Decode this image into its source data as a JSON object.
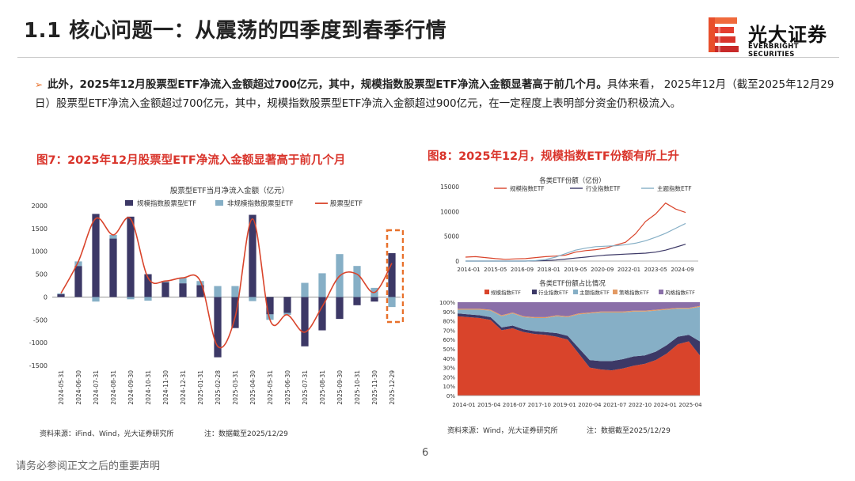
{
  "header": {
    "title": "1.1 核心问题一：从震荡的四季度到春季行情",
    "logo_cn": "光大证券",
    "logo_en": "EVERBRIGHT SECURITIES"
  },
  "bullet": {
    "lead": "此外，2025年12月股票型ETF净流入金额超过700亿元，其中，规模指数股票型ETF净流入金额显著高于前几个月。",
    "body": "具体来看， 2025年12月（截至2025年12月29日）股票型ETF净流入金额超过700亿元，其中，规模指数股票型ETF净流入金额超过900亿元，在一定程度上表明部分资金仍积极流入。"
  },
  "fig7": {
    "heading": "图7：2025年12月股票型ETF净流入金额显著高于前几个月",
    "source": "资料来源：iFind、Wind，光大证券研究所",
    "note": "注：数据截至2025/12/29"
  },
  "fig8": {
    "heading": "图8：2025年12月，规模指数ETF份额有所上升",
    "source": "资料来源：Wind，光大证券研究所",
    "note": "注：数据截至2025/12/29"
  },
  "footer": {
    "disclaimer": "请务必参阅正文之后的重要声明",
    "page": "6"
  },
  "chart_data": [
    {
      "type": "bar",
      "title": "股票型ETF当月净流入金额（亿元）",
      "categories": [
        "2024-05-31",
        "2024-06-30",
        "2024-07-31",
        "2024-08-31",
        "2024-09-30",
        "2024-10-31",
        "2024-11-30",
        "2024-12-31",
        "2025-01-31",
        "2025-02-28",
        "2025-03-31",
        "2025-04-30",
        "2025-05-31",
        "2025-06-30",
        "2025-07-31",
        "2025-08-31",
        "2025-09-30",
        "2025-10-31",
        "2025-11-30",
        "2025-12-29"
      ],
      "ylim": [
        -1500,
        2000
      ],
      "yticks": [
        "2000",
        "1500",
        "1000",
        "500",
        "0",
        "-500",
        "-1000",
        "-1500"
      ],
      "series": [
        {
          "name": "规模指数股票型ETF",
          "kind": "bar-stack",
          "color": "#3c3866",
          "values": [
            60,
            680,
            1820,
            1280,
            1760,
            500,
            320,
            300,
            260,
            -1320,
            -680,
            1800,
            -380,
            -350,
            -1080,
            -730,
            -480,
            -180,
            -100,
            960
          ]
        },
        {
          "name": "非规模指数股票型ETF",
          "kind": "bar-stack",
          "color": "#86afc6",
          "values": [
            20,
            100,
            -100,
            80,
            -50,
            -80,
            30,
            120,
            90,
            240,
            240,
            -90,
            -120,
            -40,
            310,
            520,
            940,
            680,
            200,
            -220
          ]
        },
        {
          "name": "股票型ETF",
          "kind": "line",
          "color": "#d9442b",
          "values": [
            80,
            780,
            1720,
            1360,
            1710,
            420,
            350,
            420,
            350,
            -1080,
            -440,
            1710,
            -500,
            -390,
            -770,
            -210,
            460,
            500,
            100,
            740
          ]
        }
      ]
    },
    {
      "type": "line",
      "title": "各类ETF份额（亿份）",
      "x_ticks": [
        "2014-01",
        "2015-05",
        "2016-09",
        "2018-01",
        "2019-05",
        "2020-09",
        "2022-01",
        "2023-05",
        "2024-09"
      ],
      "ylim": [
        0,
        15000
      ],
      "yticks": [
        "15000",
        "10000",
        "5000",
        "0"
      ],
      "series": [
        {
          "name": "规模指数ETF",
          "color": "#d9442b",
          "values": [
            800,
            900,
            700,
            500,
            350,
            450,
            500,
            700,
            900,
            1000,
            1200,
            1800,
            2100,
            2300,
            2600,
            3200,
            3800,
            5500,
            8000,
            9500,
            11700,
            10500,
            9800
          ]
        },
        {
          "name": "行业指数ETF",
          "color": "#3c3866",
          "values": [
            0,
            0,
            0,
            0,
            0,
            0,
            0,
            50,
            100,
            200,
            400,
            600,
            800,
            1000,
            1200,
            1300,
            1400,
            1500,
            1600,
            1800,
            2200,
            2800,
            3400
          ]
        },
        {
          "name": "主题指数ETF",
          "color": "#86afc6",
          "values": [
            0,
            0,
            0,
            0,
            0,
            0,
            0,
            100,
            300,
            800,
            1500,
            2200,
            2600,
            2900,
            3000,
            3100,
            3300,
            3600,
            4100,
            4800,
            5600,
            6600,
            7600
          ]
        }
      ]
    },
    {
      "type": "area",
      "title": "各类ETF份额占比情况",
      "x_ticks": [
        "2014-01",
        "2015-04",
        "2016-07",
        "2017-10",
        "2019-01",
        "2020-04",
        "2021-07",
        "2022-10",
        "2024-01",
        "2025-04"
      ],
      "ylim": [
        0,
        100
      ],
      "yticks": [
        "100%",
        "90%",
        "80%",
        "70%",
        "60%",
        "50%",
        "40%",
        "30%",
        "20%",
        "10%",
        "0%"
      ],
      "series": [
        {
          "name": "规模指数ETF",
          "color": "#d9442b",
          "values": [
            85,
            84,
            83,
            81,
            70,
            72,
            68,
            66,
            65,
            63,
            60,
            45,
            30,
            28,
            27,
            29,
            32,
            34,
            38,
            45,
            55,
            58,
            43
          ]
        },
        {
          "name": "行业指数ETF",
          "color": "#3c3866",
          "values": [
            3,
            3,
            3,
            3,
            3,
            3,
            3,
            3,
            3,
            4,
            4,
            6,
            8,
            9,
            10,
            10,
            10,
            9,
            9,
            9,
            8,
            7,
            15
          ]
        },
        {
          "name": "主题指数ETF",
          "color": "#86afc6",
          "values": [
            4,
            5,
            6,
            7,
            12,
            13,
            13,
            14,
            15,
            18,
            20,
            36,
            50,
            52,
            52,
            50,
            48,
            47,
            44,
            38,
            30,
            28,
            37
          ]
        },
        {
          "name": "策略指数ETF",
          "color": "#e39a64",
          "values": [
            1,
            1,
            1,
            1,
            1,
            1,
            1,
            1,
            1,
            1,
            1,
            1,
            1,
            1,
            1,
            1,
            1,
            1,
            1,
            1,
            1,
            1,
            1
          ]
        },
        {
          "name": "风格指数ETF",
          "color": "#8a6fa8",
          "values": [
            7,
            7,
            7,
            8,
            14,
            11,
            15,
            16,
            16,
            14,
            15,
            12,
            11,
            10,
            10,
            10,
            9,
            9,
            8,
            7,
            6,
            6,
            4
          ]
        }
      ]
    }
  ]
}
